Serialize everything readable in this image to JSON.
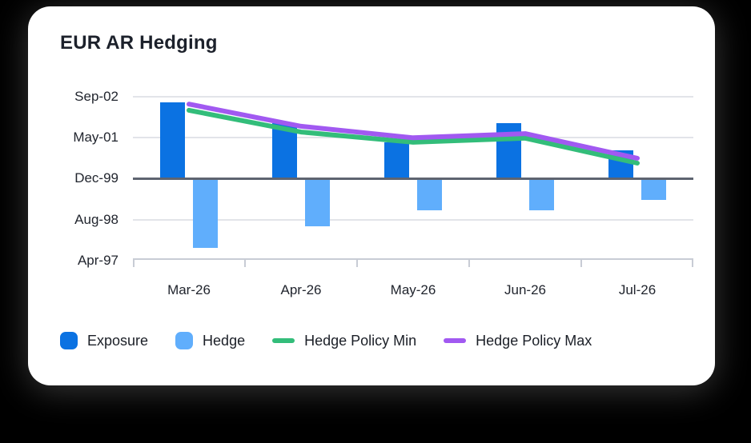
{
  "chart_data": {
    "type": "combo-bar-line",
    "title": "EUR AR Hedging",
    "categories": [
      "Mar-26",
      "Apr-26",
      "May-26",
      "Jun-26",
      "Jul-26"
    ],
    "y_axis": {
      "tick_labels": [
        "Sep-02",
        "May-01",
        "Dec-99",
        "Aug-98",
        "Apr-97"
      ],
      "baseline_label": "Dec-99",
      "units_note": "Series values are expressed in y-gridline steps measured from the Dec-99 baseline (one step = gap between adjacent y tick labels; ticks render as dates). Positive bars rise above the baseline, negative bars hang below it."
    },
    "grid": true,
    "legend_position": "bottom",
    "series": [
      {
        "name": "Exposure",
        "type": "bar",
        "color": "#0b72e2",
        "values": [
          1.86,
          1.35,
          0.89,
          1.35,
          0.69
        ]
      },
      {
        "name": "Hedge",
        "type": "bar",
        "color": "#60aefc",
        "values": [
          -1.69,
          -1.16,
          -0.77,
          -0.77,
          -0.51
        ]
      },
      {
        "name": "Hedge Policy Min",
        "type": "line",
        "color": "#33bd7a",
        "values": [
          1.67,
          1.14,
          0.89,
          0.99,
          0.38
        ]
      },
      {
        "name": "Hedge Policy Max",
        "type": "line",
        "color": "#a159f1",
        "values": [
          1.82,
          1.28,
          1.0,
          1.1,
          0.5
        ]
      }
    ]
  }
}
